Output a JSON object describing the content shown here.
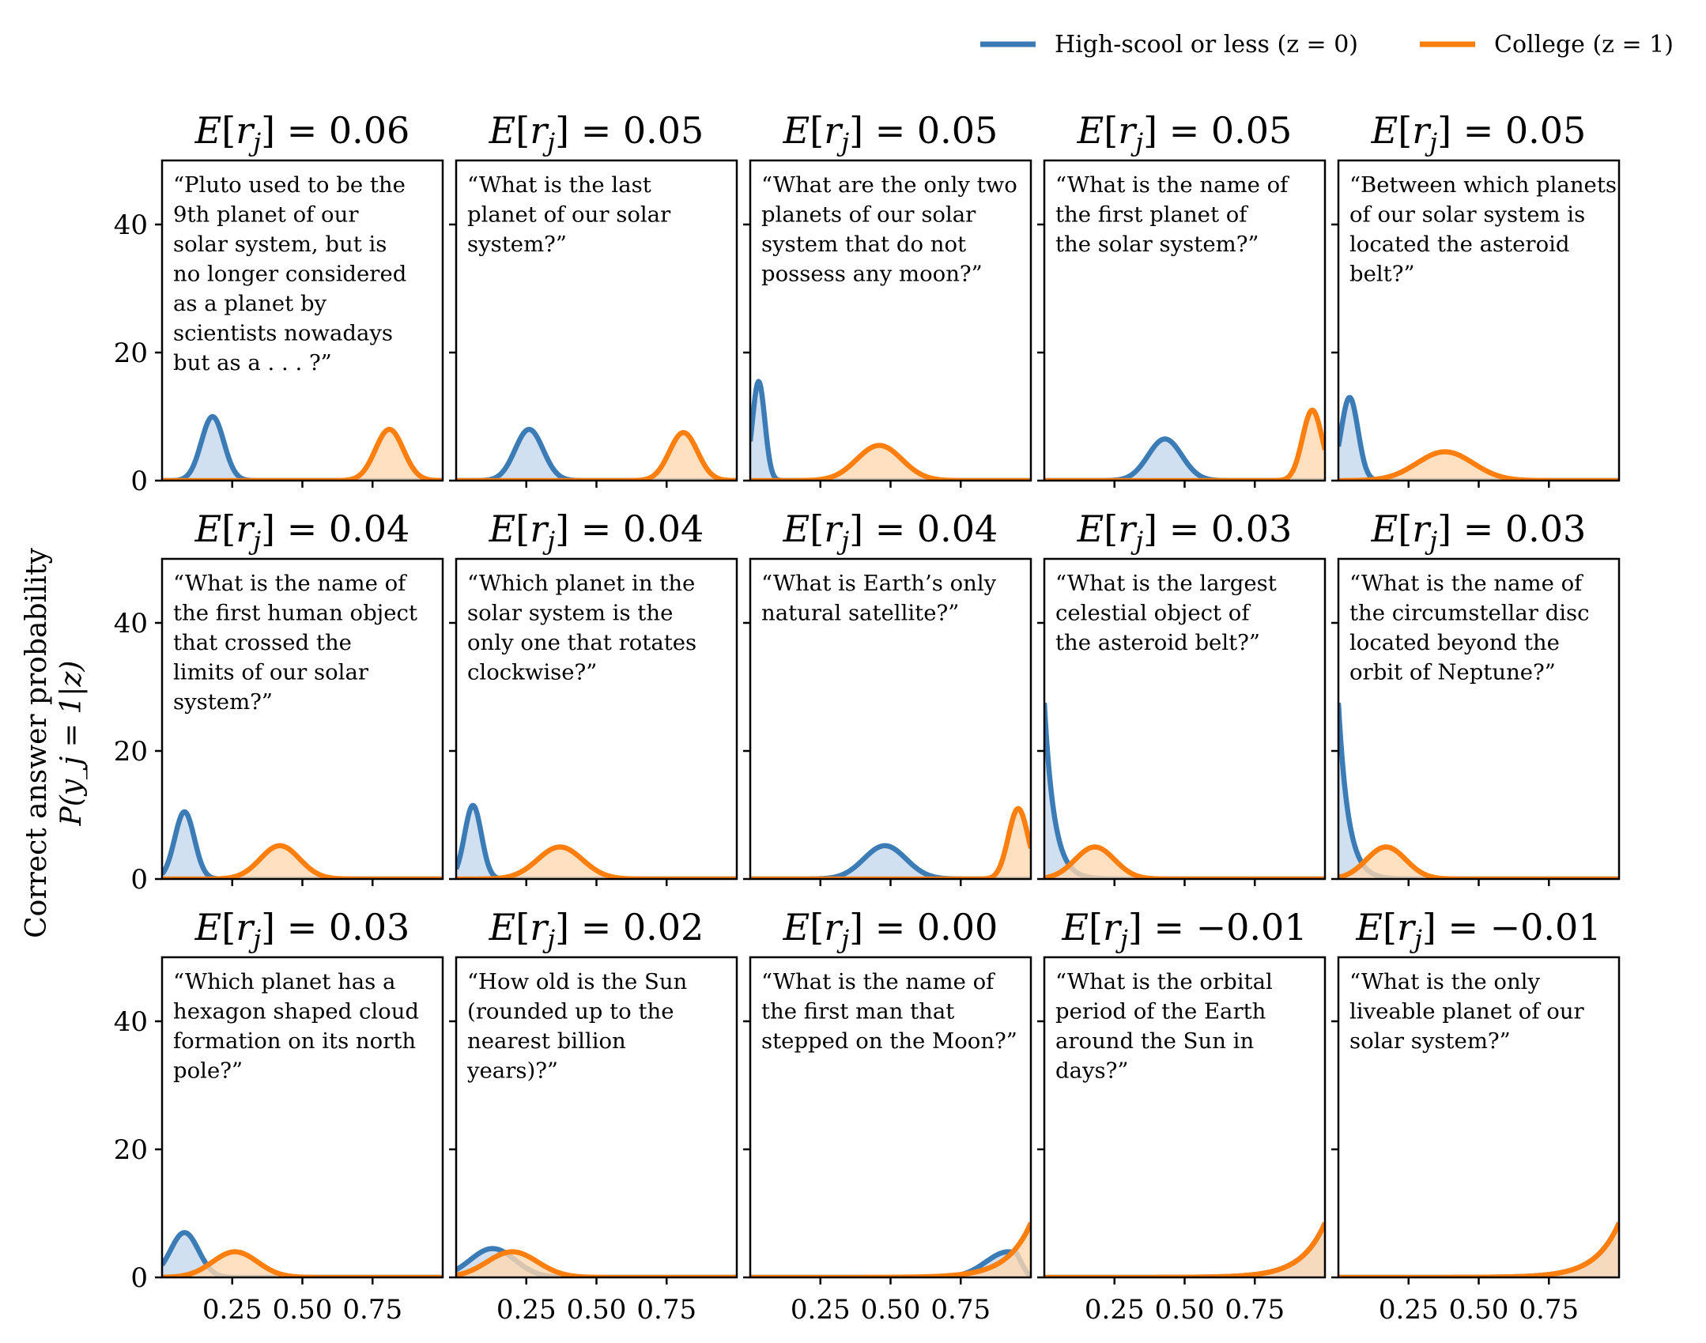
{
  "legend": {
    "items": [
      {
        "label": "High-scool or less (z = 0)",
        "color": "#3b7bb6"
      },
      {
        "label": "College (z = 1)",
        "color": "#ff7f0e"
      }
    ],
    "placement": "top-right"
  },
  "ylabel_line1": "Correct answer probability",
  "ylabel_line2": "P(y_j = 1|z)",
  "colors": {
    "hs": "#3b7bb6",
    "col": "#ff7f0e",
    "hs_fill": "#c5d8ec",
    "col_fill": "#ffd8b2"
  },
  "chart_data": {
    "type": "area",
    "layout": "3x5 small multiples",
    "xlim": [
      0,
      1
    ],
    "ylim": [
      0,
      50
    ],
    "yticks": [
      0,
      20,
      40
    ],
    "xticks": [
      0.25,
      0.5,
      0.75
    ],
    "xtick_labels": [
      "0.25",
      "0.50",
      "0.75"
    ],
    "ytick_labels": [
      "0",
      "20",
      "40"
    ],
    "grid": false,
    "panels": [
      {
        "title": "E[r_j] = 0.06",
        "question": [
          "“Pluto used to be the",
          "9th planet of our",
          "solar system, but is",
          "no longer considered",
          "as a planet by",
          "scientists nowadays",
          "but as a . . . ?”"
        ],
        "hs": {
          "type": "gauss",
          "mu": 0.18,
          "sigma": 0.04,
          "peak": 10
        },
        "col": {
          "type": "gauss",
          "mu": 0.81,
          "sigma": 0.05,
          "peak": 8
        }
      },
      {
        "title": "E[r_j] = 0.05",
        "question": [
          "“What is the last",
          "planet of our solar",
          "system?”"
        ],
        "hs": {
          "type": "gauss",
          "mu": 0.26,
          "sigma": 0.05,
          "peak": 8
        },
        "col": {
          "type": "gauss",
          "mu": 0.81,
          "sigma": 0.05,
          "peak": 7.5
        }
      },
      {
        "title": "E[r_j] = 0.05",
        "question": [
          "“What are the only two",
          "planets of our solar",
          "system that do not",
          "possess any moon?”"
        ],
        "hs": {
          "type": "gauss",
          "mu": 0.03,
          "sigma": 0.022,
          "peak": 15.5
        },
        "col": {
          "type": "gauss",
          "mu": 0.46,
          "sigma": 0.08,
          "peak": 5.5
        }
      },
      {
        "title": "E[r_j] = 0.05",
        "question": [
          "“What is the name of",
          "the first planet of",
          "the solar system?”"
        ],
        "hs": {
          "type": "gauss",
          "mu": 0.43,
          "sigma": 0.06,
          "peak": 6.5
        },
        "col": {
          "type": "gauss",
          "mu": 0.955,
          "sigma": 0.035,
          "peak": 11
        }
      },
      {
        "title": "E[r_j] = 0.05",
        "question": [
          "“Between which planets",
          "of our solar system is",
          "located the asteroid",
          "belt?”"
        ],
        "hs": {
          "type": "gauss",
          "mu": 0.04,
          "sigma": 0.03,
          "peak": 13
        },
        "col": {
          "type": "gauss",
          "mu": 0.38,
          "sigma": 0.1,
          "peak": 4.5
        }
      },
      {
        "title": "E[r_j] = 0.04",
        "question": [
          "“What is the name of",
          "the first human object",
          "that crossed the",
          "limits of our solar",
          "system?”"
        ],
        "hs": {
          "type": "gauss",
          "mu": 0.08,
          "sigma": 0.035,
          "peak": 10.5
        },
        "col": {
          "type": "gauss",
          "mu": 0.42,
          "sigma": 0.07,
          "peak": 5.2
        }
      },
      {
        "title": "E[r_j] = 0.04",
        "question": [
          "“Which planet in the",
          "solar system is the",
          "only one that rotates",
          "clockwise?”"
        ],
        "hs": {
          "type": "gauss",
          "mu": 0.06,
          "sigma": 0.03,
          "peak": 11.5
        },
        "col": {
          "type": "gauss",
          "mu": 0.37,
          "sigma": 0.08,
          "peak": 5
        }
      },
      {
        "title": "E[r_j] = 0.04",
        "question": [
          "“What is Earth’s only",
          "natural satellite?”"
        ],
        "hs": {
          "type": "gauss",
          "mu": 0.48,
          "sigma": 0.075,
          "peak": 5.2
        },
        "col": {
          "type": "gauss",
          "mu": 0.955,
          "sigma": 0.035,
          "peak": 11
        }
      },
      {
        "title": "E[r_j] = 0.03",
        "question": [
          "“What is the largest",
          "celestial object of",
          "the asteroid belt?”"
        ],
        "hs": {
          "type": "decay",
          "y0": 27.5,
          "scale": 0.035
        },
        "col": {
          "type": "gauss",
          "mu": 0.18,
          "sigma": 0.07,
          "peak": 5
        }
      },
      {
        "title": "E[r_j] = 0.03",
        "question": [
          "“What is the name of",
          "the circumstellar disc",
          "located beyond the",
          "orbit of Neptune?”"
        ],
        "hs": {
          "type": "decay",
          "y0": 27.5,
          "scale": 0.035
        },
        "col": {
          "type": "gauss",
          "mu": 0.17,
          "sigma": 0.07,
          "peak": 5
        }
      },
      {
        "title": "E[r_j] = 0.03",
        "question": [
          "“Which planet has a",
          "hexagon shaped cloud",
          "formation on its north",
          "pole?”"
        ],
        "hs": {
          "type": "gauss",
          "mu": 0.08,
          "sigma": 0.05,
          "peak": 7
        },
        "col": {
          "type": "gauss",
          "mu": 0.26,
          "sigma": 0.08,
          "peak": 4
        }
      },
      {
        "title": "E[r_j] = 0.02",
        "question": [
          "“How old is the Sun",
          "(rounded up to the",
          "nearest billion",
          "years)?”"
        ],
        "hs": {
          "type": "gauss",
          "mu": 0.13,
          "sigma": 0.08,
          "peak": 4.5
        },
        "col": {
          "type": "gauss",
          "mu": 0.2,
          "sigma": 0.09,
          "peak": 4
        }
      },
      {
        "title": "E[r_j] = 0.00",
        "question": [
          "“What is the name of",
          "the first man that",
          "stepped on the Moon?”"
        ],
        "hs": {
          "type": "gauss",
          "mu": 0.92,
          "sigma": 0.08,
          "peak": 4,
          "drop": true
        },
        "col": {
          "type": "grow",
          "y1": 8.5,
          "scale": 0.085
        }
      },
      {
        "title": "E[r_j] = −0.01",
        "question": [
          "“What is the orbital",
          "period of the Earth",
          "around the Sun in",
          "days?”"
        ],
        "hs": {
          "type": "grow",
          "y1": 8.5,
          "scale": 0.085
        },
        "col": {
          "type": "grow",
          "y1": 8.5,
          "scale": 0.085
        }
      },
      {
        "title": "E[r_j] = −0.01",
        "question": [
          "“What is the only",
          "liveable planet of our",
          "solar system?”"
        ],
        "hs": {
          "type": "grow",
          "y1": 8.5,
          "scale": 0.085
        },
        "col": {
          "type": "grow",
          "y1": 8.5,
          "scale": 0.085
        }
      }
    ]
  }
}
